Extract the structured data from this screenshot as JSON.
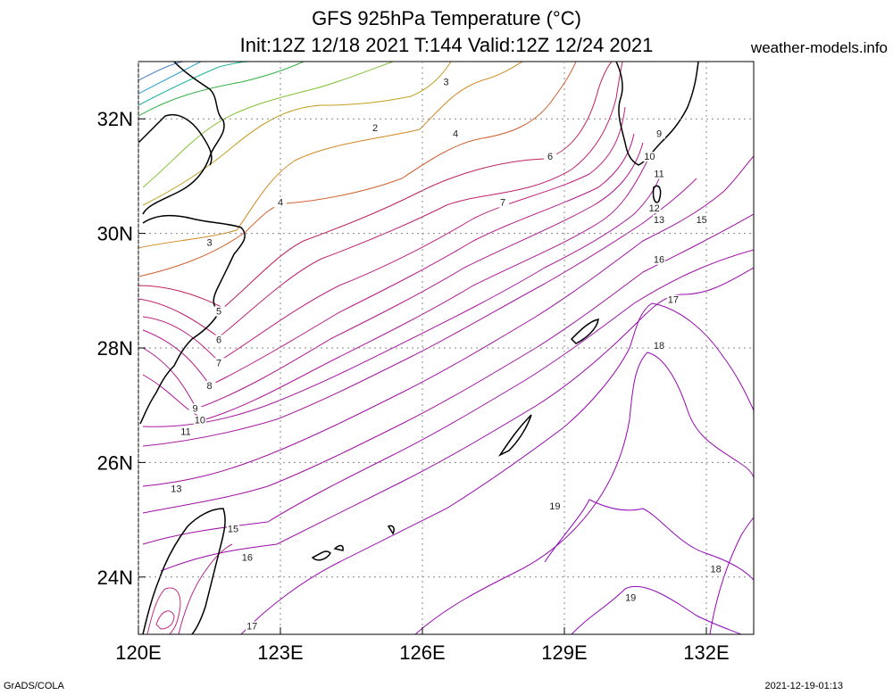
{
  "header": {
    "title_line1": "GFS 925hPa Temperature (°C)",
    "title_line2": "Init:12Z 12/18 2021 T:144 Valid:12Z 12/24 2021",
    "site": "weather-models.info"
  },
  "footer": {
    "left": "GrADS/COLA",
    "right": "2021-12-19-01:13"
  },
  "map": {
    "lon_range": [
      120,
      133
    ],
    "lat_range": [
      23,
      33
    ],
    "lon_ticks": [
      {
        "value": 120,
        "label": "120E"
      },
      {
        "value": 123,
        "label": "123E"
      },
      {
        "value": 126,
        "label": "126E"
      },
      {
        "value": 129,
        "label": "129E"
      },
      {
        "value": 132,
        "label": "132E"
      }
    ],
    "lat_ticks": [
      {
        "value": 24,
        "label": "24N"
      },
      {
        "value": 26,
        "label": "26N"
      },
      {
        "value": 28,
        "label": "28N"
      },
      {
        "value": 30,
        "label": "30N"
      },
      {
        "value": 32,
        "label": "32N"
      }
    ],
    "grid": true,
    "contour_labels": [
      {
        "text": "2",
        "lon": 125.0,
        "lat": 31.8
      },
      {
        "text": "3",
        "lon": 126.5,
        "lat": 32.6
      },
      {
        "text": "4",
        "lon": 126.7,
        "lat": 31.7
      },
      {
        "text": "4",
        "lon": 123.0,
        "lat": 30.5
      },
      {
        "text": "3",
        "lon": 121.5,
        "lat": 29.8
      },
      {
        "text": "5",
        "lon": 121.7,
        "lat": 28.6
      },
      {
        "text": "6",
        "lon": 121.7,
        "lat": 28.1
      },
      {
        "text": "7",
        "lon": 121.7,
        "lat": 27.7
      },
      {
        "text": "8",
        "lon": 121.5,
        "lat": 27.3
      },
      {
        "text": "9",
        "lon": 121.2,
        "lat": 26.9
      },
      {
        "text": "10",
        "lon": 121.3,
        "lat": 26.7
      },
      {
        "text": "11",
        "lon": 121.0,
        "lat": 26.5
      },
      {
        "text": "13",
        "lon": 120.8,
        "lat": 25.5
      },
      {
        "text": "15",
        "lon": 122.0,
        "lat": 24.8
      },
      {
        "text": "16",
        "lon": 122.3,
        "lat": 24.3
      },
      {
        "text": "17",
        "lon": 122.4,
        "lat": 23.1
      },
      {
        "text": "6",
        "lon": 128.7,
        "lat": 31.3
      },
      {
        "text": "7",
        "lon": 127.7,
        "lat": 30.5
      },
      {
        "text": "9",
        "lon": 131.0,
        "lat": 31.7
      },
      {
        "text": "10",
        "lon": 130.8,
        "lat": 31.3
      },
      {
        "text": "11",
        "lon": 131.0,
        "lat": 31.0
      },
      {
        "text": "12",
        "lon": 130.9,
        "lat": 30.4
      },
      {
        "text": "13",
        "lon": 131.0,
        "lat": 30.2
      },
      {
        "text": "15",
        "lon": 131.9,
        "lat": 30.2
      },
      {
        "text": "16",
        "lon": 131.0,
        "lat": 29.5
      },
      {
        "text": "17",
        "lon": 131.3,
        "lat": 28.8
      },
      {
        "text": "18",
        "lon": 131.0,
        "lat": 28.0
      },
      {
        "text": "19",
        "lon": 128.8,
        "lat": 25.2
      },
      {
        "text": "18",
        "lon": 132.2,
        "lat": 24.1
      },
      {
        "text": "19",
        "lon": 130.4,
        "lat": 23.6
      }
    ]
  }
}
